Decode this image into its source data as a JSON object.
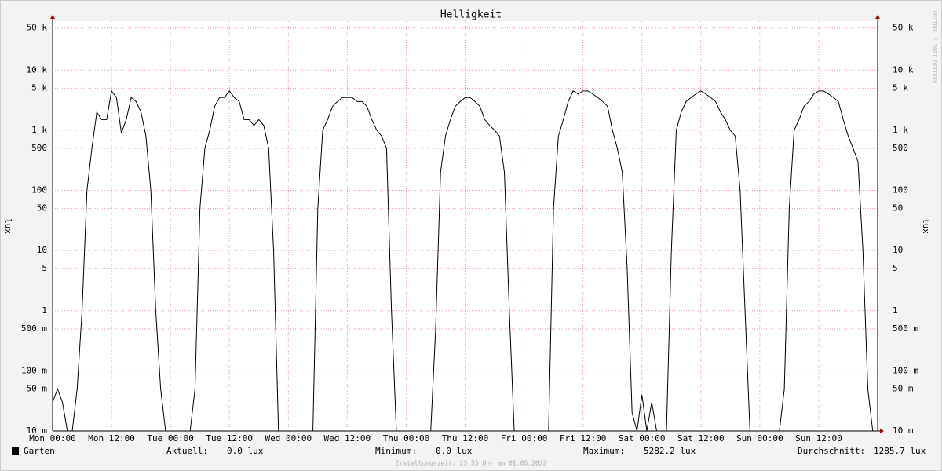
{
  "chart_data": {
    "type": "line",
    "title": "Helligkeit",
    "y_label": "lux",
    "y2_label": "lux",
    "watermark": "RRDTOOL / TOBI OETIKER",
    "log_scale": true,
    "grid": true,
    "xlim": [
      0,
      168
    ],
    "ylim": [
      0.01,
      65000
    ],
    "xticks": [
      {
        "value": 0,
        "label": "Mon 00:00"
      },
      {
        "value": 12,
        "label": "Mon 12:00"
      },
      {
        "value": 24,
        "label": "Tue 00:00"
      },
      {
        "value": 36,
        "label": "Tue 12:00"
      },
      {
        "value": 48,
        "label": "Wed 00:00"
      },
      {
        "value": 60,
        "label": "Wed 12:00"
      },
      {
        "value": 72,
        "label": "Thu 00:00"
      },
      {
        "value": 84,
        "label": "Thu 12:00"
      },
      {
        "value": 96,
        "label": "Fri 00:00"
      },
      {
        "value": 108,
        "label": "Fri 12:00"
      },
      {
        "value": 120,
        "label": "Sat 00:00"
      },
      {
        "value": 132,
        "label": "Sat 12:00"
      },
      {
        "value": 144,
        "label": "Sun 00:00"
      },
      {
        "value": 156,
        "label": "Sun 12:00"
      }
    ],
    "yticks": [
      {
        "value": 0.01,
        "label": "10 m"
      },
      {
        "value": 0.05,
        "label": "50 m"
      },
      {
        "value": 0.1,
        "label": "100 m"
      },
      {
        "value": 0.5,
        "label": "500 m"
      },
      1,
      5,
      10,
      50,
      100,
      500,
      {
        "value": 1000,
        "label": "1 k"
      },
      {
        "value": 5000,
        "label": "5 k"
      },
      {
        "value": 10000,
        "label": "10 k"
      },
      {
        "value": 50000,
        "label": "50 k"
      }
    ],
    "x": [
      0,
      1,
      2,
      3,
      4,
      5,
      6,
      7,
      8,
      9,
      10,
      11,
      12,
      13,
      14,
      15,
      16,
      17,
      18,
      19,
      20,
      21,
      22,
      23,
      24,
      25,
      26,
      27,
      28,
      29,
      30,
      31,
      32,
      33,
      34,
      35,
      36,
      37,
      38,
      39,
      40,
      41,
      42,
      43,
      44,
      45,
      46,
      47,
      48,
      49,
      50,
      51,
      52,
      53,
      54,
      55,
      56,
      57,
      58,
      59,
      60,
      61,
      62,
      63,
      64,
      65,
      66,
      67,
      68,
      69,
      70,
      71,
      72,
      73,
      74,
      75,
      76,
      77,
      78,
      79,
      80,
      81,
      82,
      83,
      84,
      85,
      86,
      87,
      88,
      89,
      90,
      91,
      92,
      93,
      94,
      95,
      96,
      97,
      98,
      99,
      100,
      101,
      102,
      103,
      104,
      105,
      106,
      107,
      108,
      109,
      110,
      111,
      112,
      113,
      114,
      115,
      116,
      117,
      118,
      119,
      120,
      121,
      122,
      123,
      124,
      125,
      126,
      127,
      128,
      129,
      130,
      131,
      132,
      133,
      134,
      135,
      136,
      137,
      138,
      139,
      140,
      141,
      142,
      143,
      144,
      145,
      146,
      147,
      148,
      149,
      150,
      151,
      152,
      153,
      154,
      155,
      156,
      157,
      158,
      159,
      160,
      161,
      162,
      163,
      164,
      165,
      166,
      167,
      168
    ],
    "series": [
      {
        "name": "Garten",
        "color": "#000000",
        "values": [
          0.03,
          0.05,
          0.03,
          0,
          0,
          0.05,
          1,
          100,
          500,
          2000,
          1500,
          1500,
          4500,
          3500,
          900,
          1500,
          3500,
          3000,
          2000,
          800,
          100,
          1,
          0.05,
          0,
          0,
          0,
          0,
          0,
          0,
          0.05,
          50,
          500,
          1000,
          2500,
          3500,
          3500,
          4500,
          3500,
          3000,
          1500,
          1500,
          1200,
          1500,
          1200,
          500,
          10,
          0.01,
          0,
          0,
          0,
          0,
          0,
          0,
          0,
          50,
          1000,
          1500,
          2500,
          3000,
          3500,
          3500,
          3500,
          3000,
          3000,
          2500,
          1500,
          1000,
          800,
          500,
          1,
          0,
          0,
          0,
          0,
          0,
          0,
          0,
          0,
          0.5,
          200,
          800,
          1500,
          2500,
          3000,
          3500,
          3500,
          3000,
          2500,
          1500,
          1200,
          1000,
          800,
          200,
          1,
          0,
          0,
          0,
          0,
          0,
          0,
          0,
          0,
          50,
          800,
          1500,
          3000,
          4500,
          4000,
          4500,
          4500,
          4000,
          3500,
          3000,
          2500,
          1000,
          500,
          200,
          5,
          0.02,
          0,
          0.04,
          0,
          0.03,
          0,
          0,
          0,
          10,
          1000,
          2000,
          3000,
          3500,
          4000,
          4500,
          4000,
          3500,
          3000,
          2000,
          1500,
          1000,
          800,
          100,
          1,
          0,
          0,
          0,
          0,
          0,
          0,
          0,
          0.05,
          50,
          1000,
          1500,
          2500,
          3000,
          4000,
          4500,
          4500,
          4000,
          3500,
          3000,
          1500,
          800,
          500,
          300,
          10,
          0.05,
          0,
          0
        ]
      }
    ],
    "stats": [
      {
        "label": "Aktuell:",
        "value": "0.0 lux"
      },
      {
        "label": "Minimum:",
        "value": "0.0 lux"
      },
      {
        "label": "Maximum:",
        "value": "5282.2 lux"
      },
      {
        "label": "Durchschnitt:",
        "value": "1285.7 lux"
      }
    ],
    "footer": "Erstellungszeit: 23:55 Uhr am 01.05.2022"
  }
}
